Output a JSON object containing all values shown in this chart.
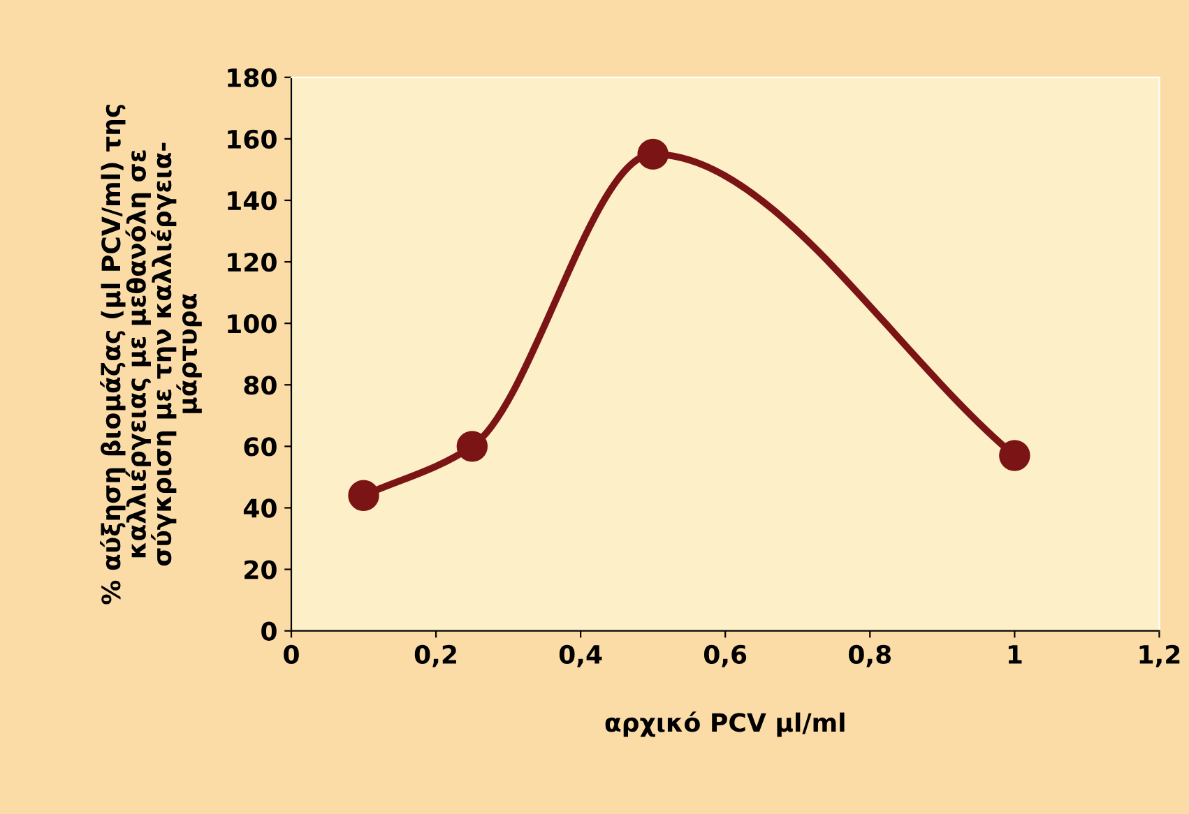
{
  "chart_data": {
    "type": "line",
    "xlabel": "αρχικό PCV μl/ml",
    "ylabel": "% αύξηση βιομάζας (μl PCV/ml) της\nκαλλιέργειας με μεθανόλη σε\nσύγκριση με την καλλιέργεια-\nμάρτυρα",
    "x": [
      0.1,
      0.25,
      0.5,
      1
    ],
    "series": [
      {
        "color": "#7b1414",
        "values": [
          44,
          60,
          155,
          57
        ]
      }
    ],
    "xlim": [
      0,
      1.2
    ],
    "xticks": [
      0,
      {
        "value": 0.2,
        "label": "0,2"
      },
      {
        "value": 0.4,
        "label": "0,4"
      },
      {
        "value": 0.6,
        "label": "0,6"
      },
      {
        "value": 0.8,
        "label": "0,8"
      },
      1,
      {
        "value": 1.2,
        "label": "1,2"
      }
    ],
    "ylim": [
      0,
      180
    ],
    "yticks": [
      0,
      20,
      40,
      60,
      80,
      100,
      120,
      140,
      160,
      180
    ],
    "grid": false,
    "legend": false,
    "marker": "circle",
    "line_style": "solid"
  }
}
